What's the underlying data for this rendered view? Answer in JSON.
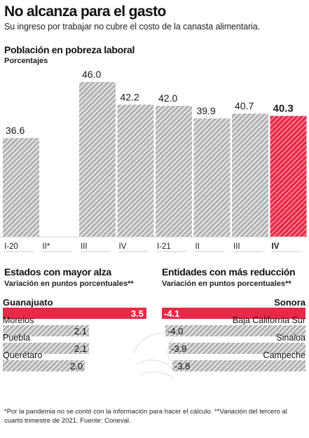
{
  "header": {
    "title": "No alcanza para el gasto",
    "subtitle": "Su ingreso por trabajar no cubre el costo de la canasta alimentaria."
  },
  "main_chart": {
    "title": "Población en pobreza laboral",
    "subtitle": "Porcentajes"
  },
  "left_panel": {
    "title": "Estados con mayor alza",
    "subtitle": "Variación en puntos porcentuales**"
  },
  "right_panel": {
    "title": "Entidades con más reducción",
    "subtitle": "Variación en puntos porcentuales**"
  },
  "footnote": "*Por la pandemia no se contó con la información para hacer el cálculo. **Variación del tercero al cuarto trimestre de 2021. Fuente: Coneval.",
  "colors": {
    "highlight": "#e8294a",
    "hatch_bg": "#b3b3b3",
    "hatch_line": "#ffffff"
  },
  "chart_data": [
    {
      "type": "bar",
      "title": "Población en pobreza laboral",
      "ylabel": "Porcentajes",
      "categories": [
        "I-20",
        "II*",
        "III",
        "IV",
        "I-21",
        "II",
        "III",
        "IV"
      ],
      "value_labels": [
        "36.6",
        "",
        "46.0",
        "42.2",
        "42.0",
        "39.9",
        "40.7",
        "40.3"
      ],
      "values": [
        36.6,
        null,
        46.0,
        42.2,
        42.0,
        39.9,
        40.7,
        40.3
      ],
      "highlight_index": 7,
      "ylim": [
        0,
        46
      ],
      "grid": false
    },
    {
      "type": "bar",
      "orientation": "horizontal",
      "title": "Estados con mayor alza",
      "ylabel": "Variación en puntos porcentuales**",
      "categories": [
        "Guanajuato",
        "Morelos",
        "Puebla",
        "Querétaro"
      ],
      "value_labels": [
        "3.5",
        "2.1",
        "2.1",
        "2.0"
      ],
      "values": [
        3.5,
        2.1,
        2.1,
        2.0
      ],
      "highlight_index": 0
    },
    {
      "type": "bar",
      "orientation": "horizontal",
      "title": "Entidades con más reducción",
      "ylabel": "Variación en puntos porcentuales**",
      "categories": [
        "Sonora",
        "Baja California Sur",
        "Sinaloa",
        "Campeche"
      ],
      "value_labels": [
        "-4.1",
        "-4.0",
        "-3.9",
        "-3.8"
      ],
      "values": [
        -4.1,
        -4.0,
        -3.9,
        -3.8
      ],
      "highlight_index": 0
    }
  ]
}
